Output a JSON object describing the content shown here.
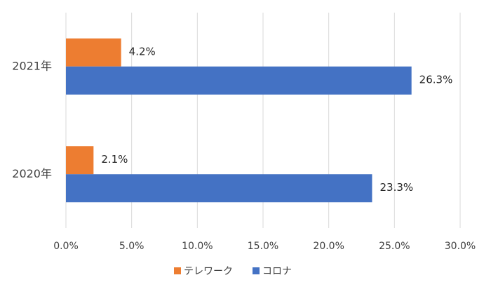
{
  "chart_data": {
    "type": "hbar",
    "categories": [
      "2020年",
      "2021年"
    ],
    "series": [
      {
        "name": "テレワーク",
        "color": "#ed7d31",
        "values": [
          2.1,
          4.2
        ],
        "value_labels": [
          "2.1%",
          "4.2%"
        ]
      },
      {
        "name": "コロナ",
        "color": "#4472c4",
        "values": [
          23.3,
          26.3
        ],
        "value_labels": [
          "23.3%",
          "26.3%"
        ]
      }
    ],
    "xlim": [
      0,
      30
    ],
    "xticks": [
      {
        "value": 0,
        "label": "0.0%"
      },
      {
        "value": 5,
        "label": "5.0%"
      },
      {
        "value": 10,
        "label": "10.0%"
      },
      {
        "value": 15,
        "label": "15.0%"
      },
      {
        "value": 20,
        "label": "20.0%"
      },
      {
        "value": 25,
        "label": "25.0%"
      },
      {
        "value": 30,
        "label": "30.0%"
      }
    ],
    "grid": true,
    "legend": "bottom"
  }
}
